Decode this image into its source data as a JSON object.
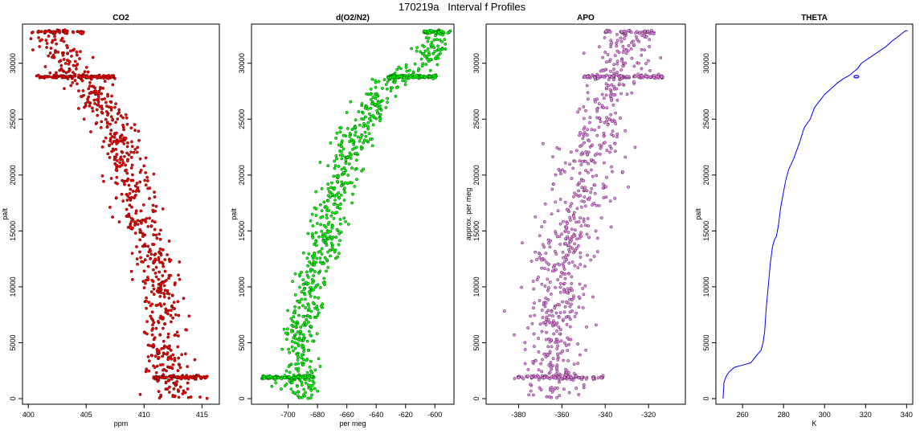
{
  "figure_title": "170219a   Interval f Profiles",
  "colors": {
    "co2": "#ff0000",
    "o2n2": "#00ff00",
    "apo": "#ee82ee",
    "theta": "#0000ff",
    "outline": "#000000"
  },
  "chart_data": [
    {
      "id": "co2",
      "type": "scatter",
      "title": "CO2",
      "xlabel": "ppm",
      "ylabel": "palt",
      "xlim": [
        399.5,
        416.5
      ],
      "ylim": [
        -500,
        33500
      ],
      "xticks": [
        400,
        405,
        410,
        415
      ],
      "xtick_labels": [
        "400",
        "405",
        "410",
        "415"
      ],
      "yticks": [
        0,
        5000,
        10000,
        15000,
        20000,
        25000,
        30000
      ],
      "ytick_labels": [
        "0",
        "5000",
        "10000",
        "15000",
        "20000",
        "25000",
        "30000"
      ],
      "series": [
        {
          "color": "#ff0000",
          "profile": [
            [
              0,
              413.0
            ],
            [
              1900,
              412.0
            ],
            [
              4000,
              411.5
            ],
            [
              8000,
              411.5
            ],
            [
              12000,
              411.0
            ],
            [
              16000,
              409.5
            ],
            [
              20000,
              409.0
            ],
            [
              24000,
              407.5
            ],
            [
              27000,
              406.0
            ],
            [
              28800,
              404.0
            ],
            [
              30500,
              403.0
            ],
            [
              32800,
              402.0
            ]
          ],
          "spread": 0.9,
          "points": 700,
          "bands": [
            {
              "y": 1900,
              "x_range": [
                410.8,
                415.5
              ],
              "points": 90
            },
            {
              "y": 28800,
              "x_range": [
                400.5,
                407.5
              ],
              "points": 110
            },
            {
              "y": 32800,
              "x_range": [
                400.3,
                404.8
              ],
              "points": 45
            }
          ]
        }
      ]
    },
    {
      "id": "o2n2",
      "type": "scatter",
      "title": "d(O2/N2)",
      "xlabel": "per meg",
      "ylabel": "palt",
      "xlim": [
        -725,
        -587
      ],
      "ylim": [
        -500,
        33500
      ],
      "xticks": [
        -700,
        -680,
        -660,
        -640,
        -620,
        -600
      ],
      "xtick_labels": [
        "-700",
        "-680",
        "-660",
        "-640",
        "-620",
        "-600"
      ],
      "yticks": [
        0,
        5000,
        10000,
        15000,
        20000,
        25000,
        30000
      ],
      "ytick_labels": [
        "0",
        "5000",
        "10000",
        "15000",
        "20000",
        "25000",
        "30000"
      ],
      "series": [
        {
          "color": "#00ff00",
          "profile": [
            [
              0,
              -690
            ],
            [
              1900,
              -692
            ],
            [
              5000,
              -692
            ],
            [
              9000,
              -688
            ],
            [
              12000,
              -682
            ],
            [
              14000,
              -675
            ],
            [
              17000,
              -670
            ],
            [
              20000,
              -664
            ],
            [
              24000,
              -652
            ],
            [
              27000,
              -640
            ],
            [
              28800,
              -625
            ],
            [
              30500,
              -605
            ],
            [
              32800,
              -598
            ]
          ],
          "spread": 6,
          "points": 700,
          "bands": [
            {
              "y": 1900,
              "x_range": [
                -718,
                -682
              ],
              "points": 90
            },
            {
              "y": 28800,
              "x_range": [
                -632,
                -599
              ],
              "points": 100
            },
            {
              "y": 32800,
              "x_range": [
                -608,
                -590
              ],
              "points": 40
            }
          ]
        }
      ]
    },
    {
      "id": "apo",
      "type": "scatter",
      "title": "APO",
      "xlabel": "",
      "ylabel": "approx. per meg",
      "xlim": [
        -395,
        -303
      ],
      "ylim": [
        -500,
        33500
      ],
      "xticks": [
        -380,
        -360,
        -340,
        -320
      ],
      "xtick_labels": [
        "-380",
        "-360",
        "-340",
        "-320"
      ],
      "yticks": [
        0,
        5000,
        10000,
        15000,
        20000,
        25000,
        30000
      ],
      "ytick_labels": [
        "0",
        "5000",
        "10000",
        "15000",
        "20000",
        "25000",
        "30000"
      ],
      "series": [
        {
          "color": "#ee82ee",
          "profile": [
            [
              0,
              -362
            ],
            [
              1900,
              -362
            ],
            [
              5000,
              -364
            ],
            [
              10000,
              -362
            ],
            [
              15000,
              -356
            ],
            [
              20000,
              -350
            ],
            [
              25000,
              -342
            ],
            [
              28800,
              -335
            ],
            [
              30500,
              -332
            ],
            [
              32800,
              -328
            ]
          ],
          "spread": 7,
          "points": 700,
          "bands": [
            {
              "y": 1900,
              "x_range": [
                -382,
                -341
              ],
              "points": 90
            },
            {
              "y": 28800,
              "x_range": [
                -350,
                -313
              ],
              "points": 100
            },
            {
              "y": 32800,
              "x_range": [
                -340,
                -317
              ],
              "points": 40
            }
          ]
        }
      ]
    },
    {
      "id": "theta",
      "type": "line",
      "title": "THETA",
      "xlabel": "K",
      "ylabel": "palt",
      "xlim": [
        247,
        343
      ],
      "ylim": [
        -500,
        33500
      ],
      "xticks": [
        260,
        280,
        300,
        320,
        340
      ],
      "xtick_labels": [
        "260",
        "280",
        "300",
        "320",
        "340"
      ],
      "yticks": [
        0,
        5000,
        10000,
        15000,
        20000,
        25000,
        30000
      ],
      "ytick_labels": [
        "0",
        "5000",
        "10000",
        "15000",
        "20000",
        "25000",
        "30000"
      ],
      "series": [
        {
          "color": "#0000ff",
          "x": [
            250.5,
            250.8,
            251,
            252,
            253.5,
            256,
            260,
            264,
            266.5,
            269,
            270,
            270.8,
            271.5,
            272.5,
            273.5,
            274.5,
            275.5,
            276.5,
            277.5,
            278.5,
            280,
            281,
            282.5,
            285,
            288,
            290,
            293,
            295,
            297,
            300,
            303,
            306,
            309,
            312,
            314,
            316,
            318,
            322,
            326,
            330,
            333,
            336,
            338,
            339.5,
            340.5
          ],
          "y": [
            0,
            1000,
            1500,
            2000,
            2400,
            2800,
            3000,
            3200,
            3800,
            4300,
            5000,
            6000,
            8000,
            10000,
            12000,
            13500,
            14200,
            14500,
            15500,
            17000,
            18500,
            19500,
            20500,
            21500,
            23000,
            24200,
            25000,
            26000,
            26500,
            27200,
            27700,
            28200,
            28600,
            28900,
            29200,
            29500,
            30000,
            30500,
            31000,
            31500,
            32000,
            32400,
            32700,
            32900,
            32900
          ]
        }
      ]
    }
  ]
}
